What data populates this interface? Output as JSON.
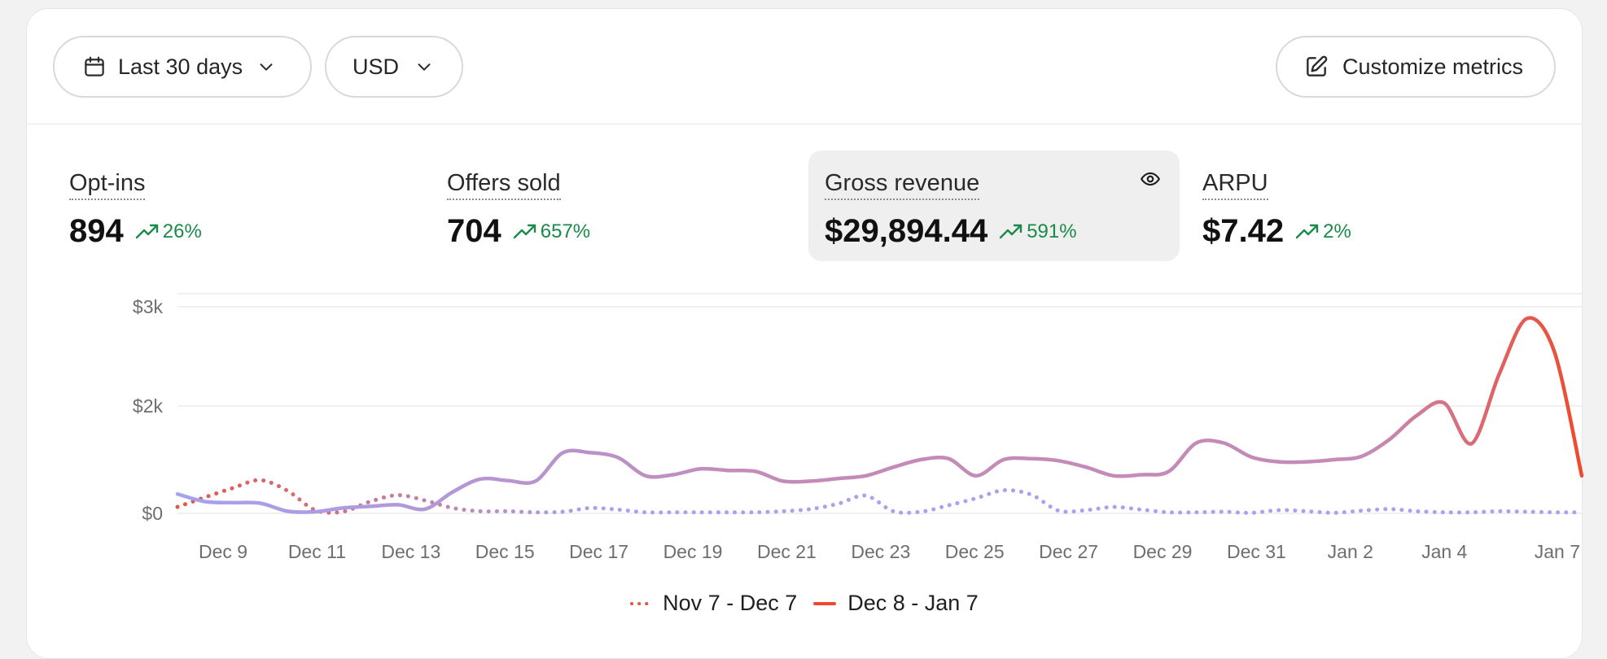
{
  "toolbar": {
    "date_range_label": "Last 30 days",
    "currency_label": "USD",
    "customize_label": "Customize metrics"
  },
  "metrics": [
    {
      "label": "Opt-ins",
      "value": "894",
      "change": "26%"
    },
    {
      "label": "Offers sold",
      "value": "704",
      "change": "657%"
    },
    {
      "label": "Gross revenue",
      "value": "$29,894.44",
      "change": "591%",
      "selected": true
    },
    {
      "label": "ARPU",
      "value": "$7.42",
      "change": "2%"
    }
  ],
  "icons": {
    "calendar": "calendar-icon",
    "chevron": "chevron-down-icon",
    "edit": "edit-icon",
    "trend": "trend-up-icon",
    "eye": "eye-icon"
  },
  "colors": {
    "positive": "#1a8a4a",
    "current_start": "#a5a2f0",
    "current_mid": "#c48bb8",
    "current_end": "#f0492c",
    "previous_start": "#e35646",
    "previous_end": "#a9a2ee"
  },
  "chart_data": {
    "type": "line",
    "y_ticks": [
      "$0",
      "$2k",
      "$3k"
    ],
    "y_tick_values": [
      0,
      2000,
      3000
    ],
    "ylim": [
      0,
      3000
    ],
    "x_tick_labels": [
      "Dec 9",
      "Dec 11",
      "Dec 13",
      "Dec 15",
      "Dec 17",
      "Dec 19",
      "Dec 21",
      "Dec 23",
      "Dec 25",
      "Dec 27",
      "Dec 29",
      "Dec 31",
      "Jan 2",
      "Jan 4",
      "Jan 7"
    ],
    "series": [
      {
        "name": "Nov 7 - Dec 7",
        "style": "dotted",
        "values": [
          120,
          300,
          470,
          620,
          420,
          60,
          30,
          220,
          340,
          240,
          100,
          40,
          40,
          20,
          30,
          100,
          70,
          20,
          20,
          20,
          20,
          20,
          40,
          80,
          180,
          330,
          40,
          30,
          150,
          280,
          430,
          350,
          50,
          60,
          120,
          70,
          20,
          20,
          30,
          10,
          60,
          40,
          10,
          50,
          80,
          40,
          20,
          20,
          40,
          30,
          20,
          20
        ]
      },
      {
        "name": "Dec 8 - Jan 7",
        "style": "solid",
        "values": [
          360,
          220,
          200,
          190,
          40,
          30,
          100,
          130,
          160,
          80,
          400,
          640,
          610,
          600,
          1130,
          1130,
          1040,
          700,
          720,
          830,
          800,
          780,
          600,
          600,
          650,
          700,
          860,
          1000,
          1020,
          700,
          1000,
          1020,
          980,
          860,
          700,
          720,
          780,
          1310,
          1310,
          1050,
          960,
          960,
          1000,
          1060,
          1370,
          1820,
          2030,
          1300,
          2320,
          2880,
          2550,
          700
        ]
      }
    ]
  },
  "legend": {
    "previous": "Nov 7 - Dec 7",
    "current": "Dec 8 - Jan 7"
  }
}
